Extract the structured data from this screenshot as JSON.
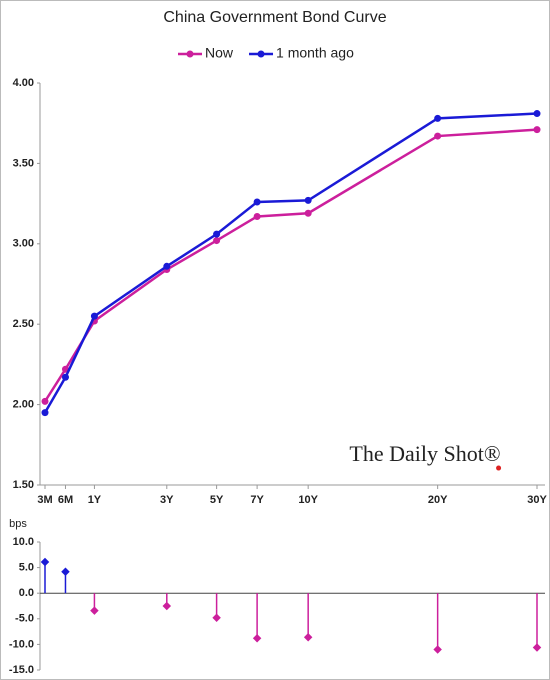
{
  "chart_data": [
    {
      "type": "line",
      "title": "China Government Bond Curve",
      "annotation": "The Daily Shot®",
      "x": [
        0.25,
        0.5,
        1,
        3,
        5,
        7,
        10,
        20,
        30
      ],
      "xlim": [
        0.25,
        30
      ],
      "xscale": "sqrt",
      "xticks": [
        {
          "value": 0.25,
          "label": "3M"
        },
        {
          "value": 0.5,
          "label": "6M"
        },
        {
          "value": 1,
          "label": "1Y"
        },
        {
          "value": 3,
          "label": "3Y"
        },
        {
          "value": 5,
          "label": "5Y"
        },
        {
          "value": 7,
          "label": "7Y"
        },
        {
          "value": 10,
          "label": "10Y"
        },
        {
          "value": 20,
          "label": "20Y"
        },
        {
          "value": 30,
          "label": "30Y"
        }
      ],
      "ylim": [
        1.5,
        4.0
      ],
      "yticks": [
        {
          "value": 1.5,
          "label": "1.50"
        },
        {
          "value": 2.0,
          "label": "2.00"
        },
        {
          "value": 2.5,
          "label": "2.50"
        },
        {
          "value": 3.0,
          "label": "3.00"
        },
        {
          "value": 3.5,
          "label": "3.50"
        },
        {
          "value": 4.0,
          "label": "4.00"
        }
      ],
      "series": [
        {
          "name": "Now",
          "color": "#cc1f9c",
          "values": [
            2.02,
            2.22,
            2.52,
            2.84,
            3.02,
            3.17,
            3.19,
            3.67,
            3.71
          ]
        },
        {
          "name": "1 month ago",
          "color": "#1a1ad6",
          "values": [
            1.95,
            2.17,
            2.55,
            2.86,
            3.06,
            3.26,
            3.27,
            3.78,
            3.81
          ]
        }
      ]
    },
    {
      "type": "stem",
      "ylabel": "bps",
      "x": [
        0.25,
        0.5,
        1,
        3,
        5,
        7,
        10,
        20,
        30
      ],
      "xlim": [
        0.25,
        30
      ],
      "xscale": "sqrt",
      "ylim": [
        -15,
        10
      ],
      "yticks": [
        {
          "value": 10,
          "label": "10.0"
        },
        {
          "value": 5,
          "label": "5.0"
        },
        {
          "value": 0,
          "label": "0.0"
        },
        {
          "value": -5,
          "label": "-5.0"
        },
        {
          "value": -10,
          "label": "-10.0"
        },
        {
          "value": -15,
          "label": "-15.0"
        }
      ],
      "positive_color": "#1a1ad6",
      "negative_color": "#cc1f9c",
      "values": [
        6.1,
        4.2,
        -3.4,
        -2.5,
        -4.8,
        -8.8,
        -8.6,
        -11,
        -10.6
      ]
    }
  ]
}
